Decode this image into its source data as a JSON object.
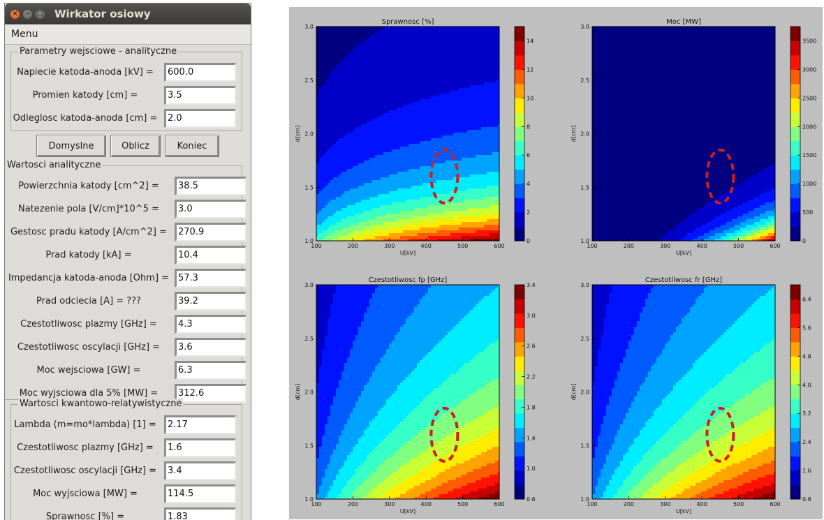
{
  "window": {
    "title": "Wirkator osiowy",
    "menu": [
      "Menu"
    ]
  },
  "group_input": {
    "title": "Parametry wejsciowe - analityczne",
    "rows": [
      {
        "label": "Napiecie katoda-anoda [kV] =",
        "value": "600.0"
      },
      {
        "label": "Promien katody [cm] =",
        "value": "3.5"
      },
      {
        "label": "Odleglosc katoda-anoda [cm] =",
        "value": "2.0"
      }
    ]
  },
  "buttons": {
    "defaults": "Domyslne",
    "compute": "Oblicz",
    "end": "Koniec"
  },
  "group_analytic": {
    "title": "Wartosci analityczne",
    "rows": [
      {
        "label": "Powierzchnia katody [cm^2] =",
        "value": "38.5"
      },
      {
        "label": "Natezenie pola [V/cm]*10^5 =",
        "value": "3.0"
      },
      {
        "label": "Gestosc pradu katody [A/cm^2] =",
        "value": "270.9"
      },
      {
        "label": "Prad katody [kA] =",
        "value": "10.4"
      },
      {
        "label": "Impedancja katoda-anoda [Ohm] =",
        "value": "57.3"
      },
      {
        "label": "Prad odciecia [A] = ???",
        "value": "39.2"
      },
      {
        "label": "Czestotliwosc plazmy [GHz] =",
        "value": "4.3"
      },
      {
        "label": "Czestotliwosc oscylacji [GHz] =",
        "value": "3.6"
      },
      {
        "label": "Moc wejsciowa [GW] =",
        "value": "6.3"
      },
      {
        "label": "Moc wyjsciowa dla 5% [MW] =",
        "value": "312.6"
      }
    ]
  },
  "group_quantum": {
    "title": "Wartosci kwantowo-relatywistyczne",
    "rows": [
      {
        "label": "Lambda (m=mo*lambda) [1] =",
        "value": "2.17"
      },
      {
        "label": "Czestotliwosc plazmy [GHz] =",
        "value": "1.6"
      },
      {
        "label": "Czestotliwosc oscylacji [GHz] =",
        "value": "3.4"
      },
      {
        "label": "Moc wyjsciowa [MW] =",
        "value": "114.5"
      },
      {
        "label": "Sprawnosc [%] =",
        "value": "1.83"
      }
    ]
  },
  "colors": {
    "marker": "#cc1f1f",
    "window_bg": "#dedcd9",
    "titlebar": "#3c3b37",
    "close_button": "#dd4814"
  },
  "chart_data": [
    {
      "type": "heatmap",
      "title": "Sprawnosc [%]",
      "xlabel": "U[kV]",
      "ylabel": "d[cm]",
      "x": [
        100,
        200,
        300,
        400,
        500,
        600
      ],
      "y": [
        1.0,
        1.5,
        2.0,
        2.5,
        3.0
      ],
      "xlim": [
        100,
        600
      ],
      "ylim": [
        1.0,
        3.0
      ],
      "colorbar_ticks": [
        "0",
        "2",
        "4",
        "6",
        "8",
        "10",
        "12",
        "14"
      ],
      "vrange": [
        0,
        15
      ],
      "marker": {
        "x": 450,
        "y": 1.6
      }
    },
    {
      "type": "heatmap",
      "title": "Moc [MW]",
      "xlabel": "U[kV]",
      "ylabel": "d[cm]",
      "x": [
        100,
        200,
        300,
        400,
        500,
        600
      ],
      "y": [
        1.0,
        1.5,
        2.0,
        2.5,
        3.0
      ],
      "xlim": [
        100,
        600
      ],
      "ylim": [
        1.0,
        3.0
      ],
      "colorbar_ticks": [
        "0",
        "500",
        "1000",
        "1500",
        "2000",
        "2500",
        "3000",
        "3500"
      ],
      "vrange": [
        0,
        3750
      ],
      "marker": {
        "x": 450,
        "y": 1.6
      }
    },
    {
      "type": "heatmap",
      "title": "Czestotliwosc fp [GHz]",
      "xlabel": "U[kV]",
      "ylabel": "d[cm]",
      "x": [
        100,
        200,
        300,
        400,
        500,
        600
      ],
      "y": [
        1.0,
        1.5,
        2.0,
        2.5,
        3.0
      ],
      "xlim": [
        100,
        600
      ],
      "ylim": [
        1.0,
        3.0
      ],
      "colorbar_ticks": [
        "0.6",
        "1.0",
        "1.4",
        "1.8",
        "2.2",
        "2.6",
        "3.0",
        "3.4"
      ],
      "vrange": [
        0.6,
        3.4
      ],
      "marker": {
        "x": 450,
        "y": 1.6
      }
    },
    {
      "type": "heatmap",
      "title": "Czestotliwosc fr [GHz]",
      "xlabel": "U[kV]",
      "ylabel": "d[cm]",
      "x": [
        100,
        200,
        300,
        400,
        500,
        600
      ],
      "y": [
        1.0,
        1.5,
        2.0,
        2.5,
        3.0
      ],
      "xlim": [
        100,
        600
      ],
      "ylim": [
        1.0,
        3.0
      ],
      "colorbar_ticks": [
        "0.8",
        "1.6",
        "2.4",
        "3.2",
        "4.0",
        "4.8",
        "5.6",
        "6.4"
      ],
      "vrange": [
        0.8,
        6.8
      ],
      "marker": {
        "x": 450,
        "y": 1.6
      }
    }
  ]
}
